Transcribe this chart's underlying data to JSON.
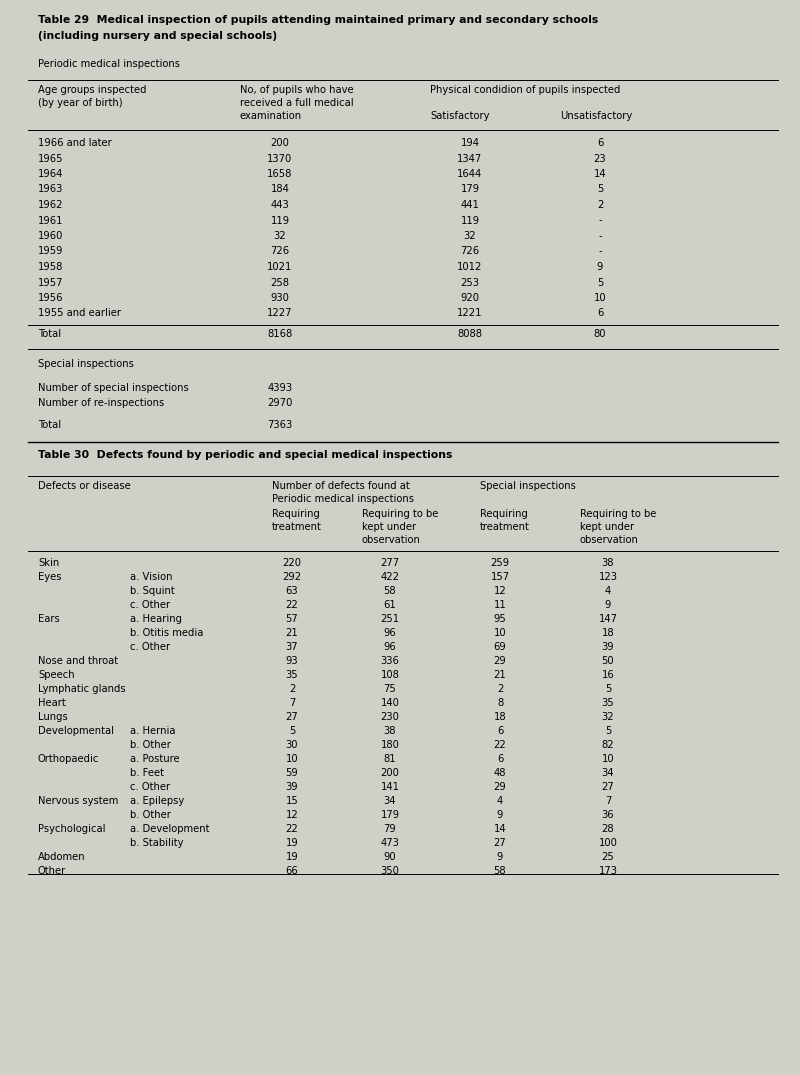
{
  "bg_color": "#d0cfc8",
  "table29_title_line1": "Table 29  Medical inspection of pupils attending maintained primary and secondary schools",
  "table29_title_line2": "(including nursery and special schools)",
  "periodic_label": "Periodic medical inspections",
  "t29_rows": [
    [
      "1966 and later",
      "200",
      "194",
      "6"
    ],
    [
      "1965",
      "1370",
      "1347",
      "23"
    ],
    [
      "1964",
      "1658",
      "1644",
      "14"
    ],
    [
      "1963",
      "184",
      "179",
      "5"
    ],
    [
      "1962",
      "443",
      "441",
      "2"
    ],
    [
      "1961",
      "119",
      "119",
      "-"
    ],
    [
      "1960",
      "32",
      "32",
      "-"
    ],
    [
      "1959",
      "726",
      "726",
      "-"
    ],
    [
      "1958",
      "1021",
      "1012",
      "9"
    ],
    [
      "1957",
      "258",
      "253",
      "5"
    ],
    [
      "1956",
      "930",
      "920",
      "10"
    ],
    [
      "1955 and earlier",
      "1227",
      "1221",
      "6"
    ]
  ],
  "t29_total_row": [
    "Total",
    "8168",
    "8088",
    "80"
  ],
  "special_label": "Special inspections",
  "special_rows": [
    [
      "Number of special inspections",
      "4393"
    ],
    [
      "Number of re-inspections",
      "2970"
    ]
  ],
  "special_total": [
    "Total",
    "7363"
  ],
  "table30_title": "Table 30  Defects found by periodic and special medical inspections",
  "t30_rows": [
    [
      "Skin",
      "",
      "220",
      "277",
      "259",
      "38"
    ],
    [
      "Eyes",
      "a. Vision",
      "292",
      "422",
      "157",
      "123"
    ],
    [
      "",
      "b. Squint",
      "63",
      "58",
      "12",
      "4"
    ],
    [
      "",
      "c. Other",
      "22",
      "61",
      "11",
      "9"
    ],
    [
      "Ears",
      "a. Hearing",
      "57",
      "251",
      "95",
      "147"
    ],
    [
      "",
      "b. Otitis media",
      "21",
      "96",
      "10",
      "18"
    ],
    [
      "",
      "c. Other",
      "37",
      "96",
      "69",
      "39"
    ],
    [
      "Nose and throat",
      "",
      "93",
      "336",
      "29",
      "50"
    ],
    [
      "Speech",
      "",
      "35",
      "108",
      "21",
      "16"
    ],
    [
      "Lymphatic glands",
      "",
      "2",
      "75",
      "2",
      "5"
    ],
    [
      "Heart",
      "",
      "7",
      "140",
      "8",
      "35"
    ],
    [
      "Lungs",
      "",
      "27",
      "230",
      "18",
      "32"
    ],
    [
      "Developmental",
      "a. Hernia",
      "5",
      "38",
      "6",
      "5"
    ],
    [
      "",
      "b. Other",
      "30",
      "180",
      "22",
      "82"
    ],
    [
      "Orthopaedic",
      "a. Posture",
      "10",
      "81",
      "6",
      "10"
    ],
    [
      "",
      "b. Feet",
      "59",
      "200",
      "48",
      "34"
    ],
    [
      "",
      "c. Other",
      "39",
      "141",
      "29",
      "27"
    ],
    [
      "Nervous system",
      "a. Epilepsy",
      "15",
      "34",
      "4",
      "7"
    ],
    [
      "",
      "b. Other",
      "12",
      "179",
      "9",
      "36"
    ],
    [
      "Psychological",
      "a. Development",
      "22",
      "79",
      "14",
      "28"
    ],
    [
      "",
      "b. Stability",
      "19",
      "473",
      "27",
      "100"
    ],
    [
      "Abdomen",
      "",
      "19",
      "90",
      "9",
      "25"
    ],
    [
      "Other",
      "",
      "66",
      "350",
      "58",
      "173"
    ]
  ],
  "font_size_title": 7.8,
  "font_size_header": 7.2,
  "font_size_data": 7.2,
  "font_family": "DejaVu Sans"
}
